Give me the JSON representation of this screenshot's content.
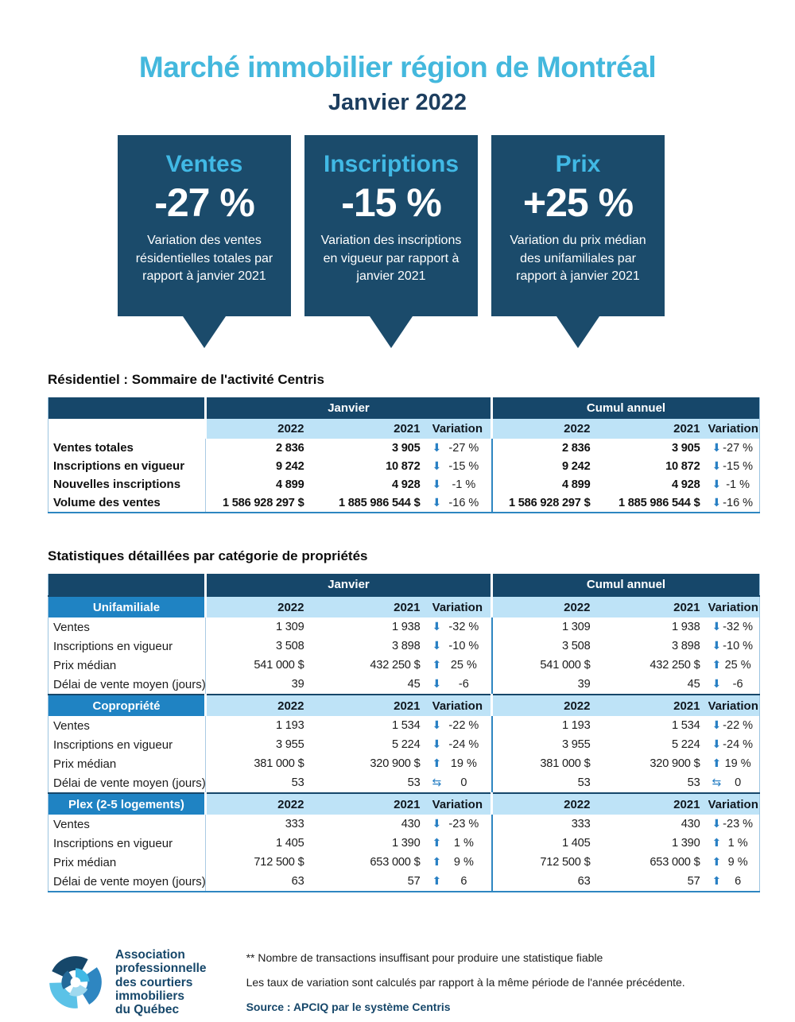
{
  "header": {
    "title": "Marché immobilier région de Montréal",
    "subtitle": "Janvier 2022"
  },
  "colors": {
    "title_blue": "#44b8dd",
    "navy": "#16476a",
    "callout_navy": "#1b4b6b",
    "callout_label_blue": "#41b9e5",
    "category_blue": "#1f83c3",
    "subheader_light_blue": "#bee3f7",
    "arrow_blue": "#2980c4",
    "table_border_blue": "#2e86c1"
  },
  "icons": {
    "down": "⬇",
    "up": "⬆",
    "neutral": "⇆"
  },
  "callouts": [
    {
      "label": "Ventes",
      "value": "-27 %",
      "description": "Variation des ventes résidentielles totales par rapport à janvier 2021"
    },
    {
      "label": "Inscriptions",
      "value": "-15 %",
      "description": "Variation des inscriptions en vigueur par rapport à janvier 2021"
    },
    {
      "label": "Prix",
      "value": "+25 %",
      "description": "Variation du prix médian des unifamiliales par rapport à janvier 2021"
    }
  ],
  "summary_table": {
    "heading": "Résidentiel : Sommaire de l'activité Centris",
    "group_headers": [
      "Janvier",
      "Cumul annuel"
    ],
    "column_headers": [
      "2022",
      "2021",
      "Variation"
    ],
    "rows": [
      {
        "label": "Ventes totales",
        "janvier": {
          "v2022": "2 836",
          "v2021": "3 905",
          "dir": "down",
          "variation": "-27 %"
        },
        "cumul": {
          "v2022": "2 836",
          "v2021": "3 905",
          "dir": "down",
          "variation": "-27 %"
        }
      },
      {
        "label": "Inscriptions en vigueur",
        "janvier": {
          "v2022": "9 242",
          "v2021": "10 872",
          "dir": "down",
          "variation": "-15 %"
        },
        "cumul": {
          "v2022": "9 242",
          "v2021": "10 872",
          "dir": "down",
          "variation": "-15 %"
        }
      },
      {
        "label": "Nouvelles inscriptions",
        "janvier": {
          "v2022": "4 899",
          "v2021": "4 928",
          "dir": "down",
          "variation": "-1 %"
        },
        "cumul": {
          "v2022": "4 899",
          "v2021": "4 928",
          "dir": "down",
          "variation": "-1 %"
        }
      },
      {
        "label": "Volume des ventes",
        "janvier": {
          "v2022": "1 586 928 297 $",
          "v2021": "1 885 986 544 $",
          "dir": "down",
          "variation": "-16 %"
        },
        "cumul": {
          "v2022": "1 586 928 297 $",
          "v2021": "1 885 986 544 $",
          "dir": "down",
          "variation": "-16 %"
        }
      }
    ]
  },
  "detail_table": {
    "heading": "Statistiques détaillées par catégorie de propriétés",
    "group_headers": [
      "Janvier",
      "Cumul annuel"
    ],
    "column_headers": [
      "2022",
      "2021",
      "Variation"
    ],
    "categories": [
      {
        "name": "Unifamiliale",
        "rows": [
          {
            "label": "Ventes",
            "janvier": {
              "v2022": "1 309",
              "v2021": "1 938",
              "dir": "down",
              "variation": "-32 %"
            },
            "cumul": {
              "v2022": "1 309",
              "v2021": "1 938",
              "dir": "down",
              "variation": "-32 %"
            }
          },
          {
            "label": "Inscriptions en vigueur",
            "janvier": {
              "v2022": "3 508",
              "v2021": "3 898",
              "dir": "down",
              "variation": "-10 %"
            },
            "cumul": {
              "v2022": "3 508",
              "v2021": "3 898",
              "dir": "down",
              "variation": "-10 %"
            }
          },
          {
            "label": "Prix médian",
            "janvier": {
              "v2022": "541 000 $",
              "v2021": "432 250 $",
              "dir": "up",
              "variation": "25 %"
            },
            "cumul": {
              "v2022": "541 000 $",
              "v2021": "432 250 $",
              "dir": "up",
              "variation": "25 %"
            }
          },
          {
            "label": "Délai de vente moyen (jours)",
            "janvier": {
              "v2022": "39",
              "v2021": "45",
              "dir": "down",
              "variation": "-6"
            },
            "cumul": {
              "v2022": "39",
              "v2021": "45",
              "dir": "down",
              "variation": "-6"
            }
          }
        ]
      },
      {
        "name": "Copropriété",
        "rows": [
          {
            "label": "Ventes",
            "janvier": {
              "v2022": "1 193",
              "v2021": "1 534",
              "dir": "down",
              "variation": "-22 %"
            },
            "cumul": {
              "v2022": "1 193",
              "v2021": "1 534",
              "dir": "down",
              "variation": "-22 %"
            }
          },
          {
            "label": "Inscriptions en vigueur",
            "janvier": {
              "v2022": "3 955",
              "v2021": "5 224",
              "dir": "down",
              "variation": "-24 %"
            },
            "cumul": {
              "v2022": "3 955",
              "v2021": "5 224",
              "dir": "down",
              "variation": "-24 %"
            }
          },
          {
            "label": "Prix médian",
            "janvier": {
              "v2022": "381 000 $",
              "v2021": "320 900 $",
              "dir": "up",
              "variation": "19 %"
            },
            "cumul": {
              "v2022": "381 000 $",
              "v2021": "320 900 $",
              "dir": "up",
              "variation": "19 %"
            }
          },
          {
            "label": "Délai de vente moyen (jours)",
            "janvier": {
              "v2022": "53",
              "v2021": "53",
              "dir": "neutral",
              "variation": "0"
            },
            "cumul": {
              "v2022": "53",
              "v2021": "53",
              "dir": "neutral",
              "variation": "0"
            }
          }
        ]
      },
      {
        "name": "Plex (2-5 logements)",
        "rows": [
          {
            "label": "Ventes",
            "janvier": {
              "v2022": "333",
              "v2021": "430",
              "dir": "down",
              "variation": "-23 %"
            },
            "cumul": {
              "v2022": "333",
              "v2021": "430",
              "dir": "down",
              "variation": "-23 %"
            }
          },
          {
            "label": "Inscriptions en vigueur",
            "janvier": {
              "v2022": "1 405",
              "v2021": "1 390",
              "dir": "up",
              "variation": "1 %"
            },
            "cumul": {
              "v2022": "1 405",
              "v2021": "1 390",
              "dir": "up",
              "variation": "1 %"
            }
          },
          {
            "label": "Prix médian",
            "janvier": {
              "v2022": "712 500 $",
              "v2021": "653 000 $",
              "dir": "up",
              "variation": "9 %"
            },
            "cumul": {
              "v2022": "712 500 $",
              "v2021": "653 000 $",
              "dir": "up",
              "variation": "9 %"
            }
          },
          {
            "label": "Délai de vente moyen (jours)",
            "janvier": {
              "v2022": "63",
              "v2021": "57",
              "dir": "up",
              "variation": "6"
            },
            "cumul": {
              "v2022": "63",
              "v2021": "57",
              "dir": "up",
              "variation": "6"
            }
          }
        ]
      }
    ]
  },
  "footer": {
    "org_lines": [
      "Association",
      "professionnelle",
      "des courtiers",
      "immobiliers",
      "du Québec"
    ],
    "notes": [
      "** Nombre de transactions insuffisant pour produire une statistique fiable",
      "Les taux de variation sont calculés par rapport à la même période de l'année précédente."
    ],
    "source": "Source : APCIQ par le système Centris"
  }
}
